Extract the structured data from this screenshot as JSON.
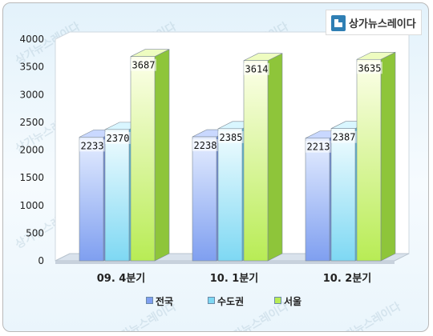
{
  "logo": {
    "text": "상가뉴스레이다"
  },
  "watermark": "상가뉴스레이다",
  "colors": {
    "series": [
      {
        "front_top": "#e6eeff",
        "front_bottom": "#7f9ff0",
        "side": "#6d8ad6",
        "top": "#c9d8ff"
      },
      {
        "front_top": "#f3fdff",
        "front_bottom": "#7ed8f3",
        "side": "#58b7d4",
        "top": "#d9f6ff"
      },
      {
        "front_top": "#fdffea",
        "front_bottom": "#b8ec55",
        "side": "#8ec53a",
        "top": "#eefcc0"
      }
    ],
    "floor": "#d9e2ec",
    "wall": "#ffffff"
  },
  "chart_data": {
    "type": "bar",
    "categories": [
      "09. 4분기",
      "10. 1분기",
      "10. 2분기"
    ],
    "series": [
      {
        "name": "전국",
        "values": [
          2233,
          2238,
          2213
        ]
      },
      {
        "name": "수도권",
        "values": [
          2370,
          2385,
          2387
        ]
      },
      {
        "name": "서울",
        "values": [
          3687,
          3614,
          3635
        ]
      }
    ],
    "y_ticks": [
      0,
      500,
      1000,
      1500,
      2000,
      2500,
      3000,
      3500,
      4000
    ],
    "ylim": [
      0,
      4000
    ],
    "grid": false,
    "legend_position": "bottom"
  }
}
